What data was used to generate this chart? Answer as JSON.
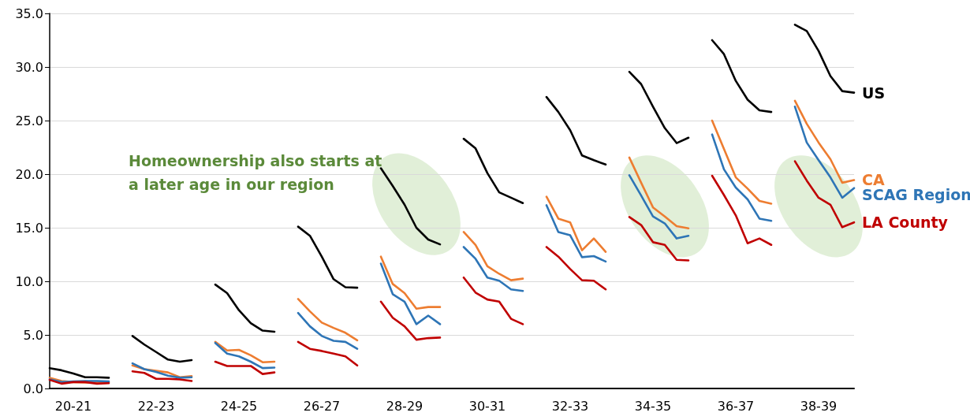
{
  "chart_data": {
    "type": "line",
    "annotations": [
      "Homeownership also starts at a later age in our region"
    ],
    "categories": [
      null,
      null,
      "20-21",
      null,
      null,
      null,
      null,
      null,
      null,
      "22-23",
      null,
      null,
      null,
      null,
      null,
      null,
      "24-25",
      null,
      null,
      null,
      null,
      null,
      null,
      "26-27",
      null,
      null,
      null,
      null,
      null,
      null,
      "28-29",
      null,
      null,
      null,
      null,
      null,
      null,
      "30-31",
      null,
      null,
      null,
      null,
      null,
      null,
      "32-33",
      null,
      null,
      null,
      null,
      null,
      null,
      "34-35",
      null,
      null,
      null,
      null,
      null,
      null,
      "36-37",
      null,
      null,
      null,
      null,
      null,
      null,
      "38-39",
      null,
      null,
      null
    ],
    "ylim": [
      0,
      35
    ],
    "yticks": [
      {
        "value": 0,
        "label": "0.0"
      },
      {
        "value": 5,
        "label": "5.0"
      },
      {
        "value": 10,
        "label": "10.0"
      },
      {
        "value": 15,
        "label": "15.0"
      },
      {
        "value": 20,
        "label": "20.0"
      },
      {
        "value": 25,
        "label": "25.0"
      },
      {
        "value": 30,
        "label": "30.0"
      },
      {
        "value": 35,
        "label": "35.0"
      }
    ],
    "grid": "y",
    "legend": false,
    "marker": "none",
    "line_style": "solid",
    "series": [
      {
        "name": "US",
        "color": "#000000",
        "values": [
          1.9,
          1.7,
          1.4,
          1.05,
          1.05,
          1.0,
          null,
          4.9,
          4.1,
          3.4,
          2.7,
          2.5,
          2.65,
          null,
          9.7,
          8.9,
          7.3,
          6.1,
          5.4,
          5.3,
          null,
          15.1,
          14.25,
          12.3,
          10.2,
          9.45,
          9.4,
          null,
          20.55,
          18.9,
          17.15,
          15.0,
          13.9,
          13.45,
          null,
          23.3,
          22.4,
          20.1,
          18.3,
          17.8,
          17.3,
          null,
          27.2,
          25.8,
          24.1,
          21.75,
          21.3,
          20.9,
          null,
          29.55,
          28.4,
          26.3,
          24.3,
          22.9,
          23.4,
          null,
          32.5,
          31.2,
          28.7,
          26.95,
          25.95,
          25.8,
          null,
          33.95,
          33.35,
          31.5,
          29.15,
          27.75,
          27.6
        ]
      },
      {
        "name": "CA",
        "color": "#ed7d31",
        "values": [
          1.0,
          0.7,
          0.6,
          0.55,
          0.55,
          0.55,
          null,
          2.15,
          1.8,
          1.65,
          1.5,
          1.05,
          1.15,
          null,
          4.35,
          3.55,
          3.6,
          3.1,
          2.45,
          2.5,
          null,
          8.35,
          7.2,
          6.15,
          5.65,
          5.2,
          4.5,
          null,
          12.3,
          9.75,
          8.9,
          7.45,
          7.6,
          7.6,
          null,
          14.6,
          13.4,
          11.4,
          10.7,
          10.1,
          10.25,
          null,
          17.9,
          15.85,
          15.5,
          12.9,
          14.0,
          12.75,
          null,
          21.55,
          19.2,
          16.9,
          16.05,
          15.15,
          14.95,
          null,
          25.0,
          22.35,
          19.7,
          18.65,
          17.5,
          17.25,
          null,
          26.85,
          24.7,
          22.95,
          21.4,
          19.2,
          19.45
        ]
      },
      {
        "name": "SCAG Region",
        "color": "#2e75b6",
        "values": [
          0.85,
          0.6,
          0.65,
          0.7,
          0.7,
          0.65,
          null,
          2.35,
          1.8,
          1.55,
          1.2,
          1.0,
          1.05,
          null,
          4.25,
          3.25,
          3.0,
          2.5,
          1.9,
          1.95,
          null,
          7.05,
          5.8,
          4.9,
          4.45,
          4.35,
          3.7,
          null,
          11.65,
          8.8,
          8.1,
          6.0,
          6.8,
          6.0,
          null,
          13.2,
          12.1,
          10.35,
          10.05,
          9.25,
          9.1,
          null,
          17.1,
          14.6,
          14.3,
          12.25,
          12.35,
          11.85,
          null,
          19.9,
          18.0,
          16.05,
          15.4,
          14.0,
          14.25,
          null,
          23.7,
          20.45,
          18.75,
          17.65,
          15.85,
          15.65,
          null,
          26.3,
          22.95,
          21.3,
          19.7,
          17.8,
          18.7
        ]
      },
      {
        "name": "LA County",
        "color": "#c00000",
        "values": [
          0.8,
          0.45,
          0.6,
          0.6,
          0.45,
          0.5,
          null,
          1.6,
          1.45,
          0.9,
          0.9,
          0.85,
          0.7,
          null,
          2.5,
          2.1,
          2.1,
          2.1,
          1.35,
          1.5,
          null,
          4.35,
          3.7,
          3.5,
          3.25,
          3.0,
          2.15,
          null,
          8.1,
          6.6,
          5.8,
          4.55,
          4.7,
          4.75,
          null,
          10.35,
          8.95,
          8.3,
          8.1,
          6.5,
          6.0,
          null,
          13.2,
          12.3,
          11.15,
          10.1,
          10.05,
          9.25,
          null,
          16.0,
          15.25,
          13.65,
          13.4,
          12.0,
          11.95,
          null,
          19.85,
          18.05,
          16.15,
          13.55,
          14.0,
          13.4,
          null,
          21.2,
          19.4,
          17.8,
          17.15,
          15.05,
          15.5
        ]
      }
    ]
  }
}
